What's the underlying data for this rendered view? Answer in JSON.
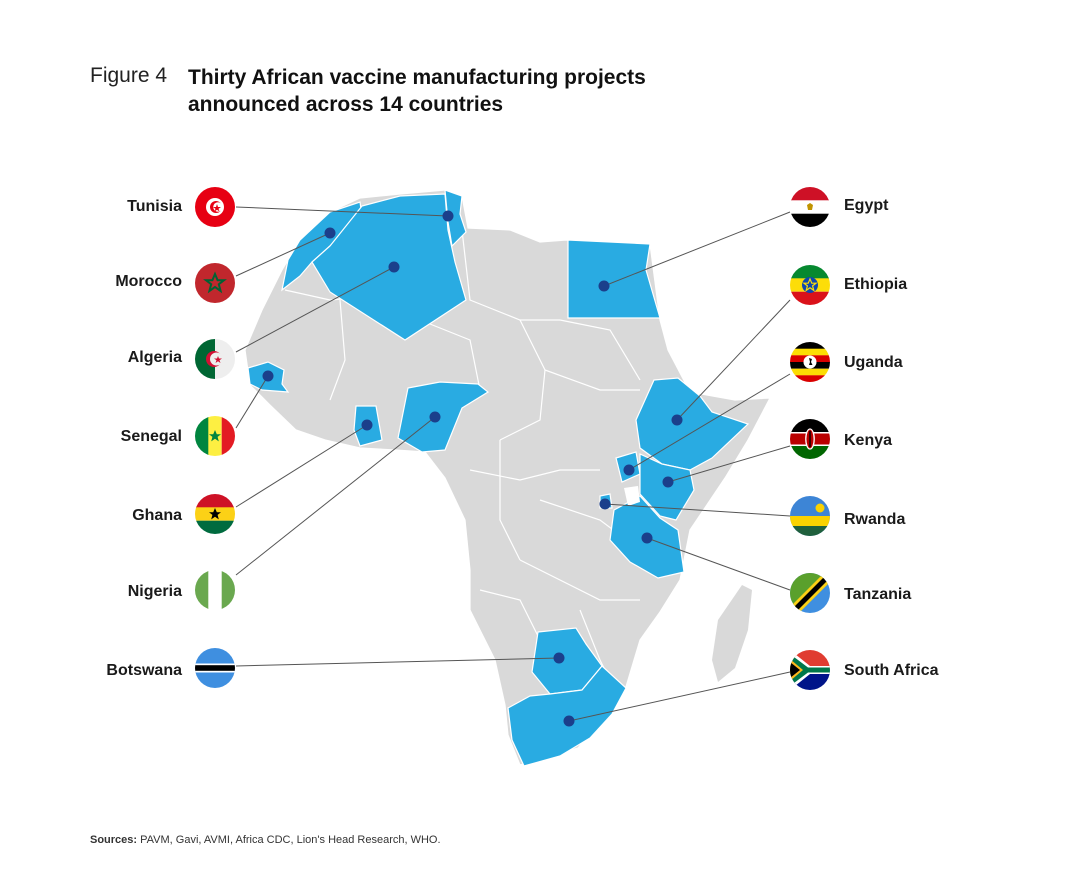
{
  "figure": {
    "label": "Figure 4",
    "title_line1": "Thirty African vaccine manufacturing projects",
    "title_line2": "announced across 14 countries"
  },
  "sources": {
    "prefix": "Sources:",
    "text": " PAVM, Gavi, AVMI, Africa CDC, Lion's Head Research, WHO."
  },
  "colors": {
    "highlight": "#29abe2",
    "land": "#d9d9d9",
    "marker": "#1b3f8b",
    "leader": "#555555"
  },
  "countries": [
    {
      "name": "Tunisia",
      "side": "left",
      "flag": "tunisia-flag"
    },
    {
      "name": "Morocco",
      "side": "left",
      "flag": "morocco-flag"
    },
    {
      "name": "Algeria",
      "side": "left",
      "flag": "algeria-flag"
    },
    {
      "name": "Senegal",
      "side": "left",
      "flag": "senegal-flag"
    },
    {
      "name": "Ghana",
      "side": "left",
      "flag": "ghana-flag"
    },
    {
      "name": "Nigeria",
      "side": "left",
      "flag": "nigeria-flag"
    },
    {
      "name": "Botswana",
      "side": "left",
      "flag": "botswana-flag"
    },
    {
      "name": "Egypt",
      "side": "right",
      "flag": "egypt-flag"
    },
    {
      "name": "Ethiopia",
      "side": "right",
      "flag": "ethiopia-flag"
    },
    {
      "name": "Uganda",
      "side": "right",
      "flag": "uganda-flag"
    },
    {
      "name": "Kenya",
      "side": "right",
      "flag": "kenya-flag"
    },
    {
      "name": "Rwanda",
      "side": "right",
      "flag": "rwanda-flag"
    },
    {
      "name": "Tanzania",
      "side": "right",
      "flag": "tanzania-flag"
    },
    {
      "name": "South Africa",
      "side": "right",
      "flag": "south-africa-flag"
    }
  ]
}
